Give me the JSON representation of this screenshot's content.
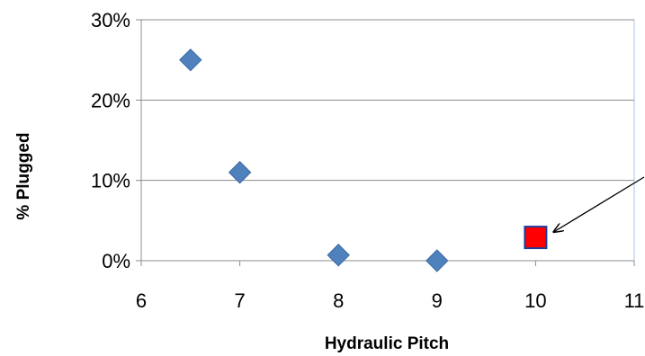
{
  "chart_data": {
    "type": "scatter",
    "title": "",
    "xlabel": "Hydraulic Pitch",
    "ylabel": "% Plugged",
    "xlim": [
      6,
      11
    ],
    "ylim": [
      0,
      30
    ],
    "x_ticks": [
      "6",
      "7",
      "8",
      "9",
      "10",
      "11"
    ],
    "y_ticks": [
      "0%",
      "10%",
      "20%",
      "30%"
    ],
    "grid": "horizontal",
    "series": [
      {
        "marker": "diamond",
        "color": "#4f81bd",
        "points": [
          {
            "x": 6.5,
            "y": 25
          },
          {
            "x": 7,
            "y": 11
          },
          {
            "x": 8,
            "y": 0.7
          },
          {
            "x": 9,
            "y": 0
          }
        ]
      },
      {
        "marker": "square",
        "color": "#ff0000",
        "points": [
          {
            "x": 10,
            "y": 2.9
          }
        ]
      }
    ],
    "annotations": [
      {
        "type": "arrow",
        "points_to": {
          "x": 10,
          "y": 2.9
        }
      }
    ]
  }
}
